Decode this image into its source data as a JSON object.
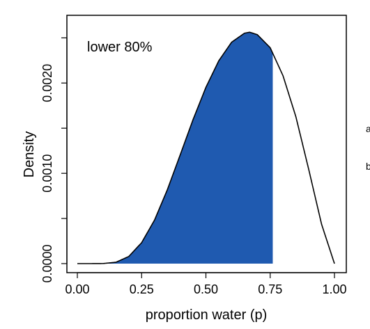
{
  "chart_data": {
    "type": "area",
    "title": "",
    "xlabel": "proportion water (p)",
    "ylabel": "Density",
    "xlim": [
      0,
      1
    ],
    "ylim": [
      0,
      0.00275
    ],
    "x_ticks": [
      0.0,
      0.25,
      0.5,
      0.75,
      1.0
    ],
    "x_tick_labels": [
      "0.00",
      "0.25",
      "0.50",
      "0.75",
      "1.00"
    ],
    "y_ticks": [
      0.0,
      0.0005,
      0.001,
      0.0015,
      0.002,
      0.0025
    ],
    "y_tick_labels": [
      "0.0000",
      "",
      "0.0010",
      "",
      "0.0020",
      ""
    ],
    "annotation": "lower 80%",
    "shaded_interval": [
      0.0,
      0.76
    ],
    "shade_color": "#1f5ab0",
    "line_color": "#000000",
    "series": [
      {
        "x": [
          0.0,
          0.05,
          0.1,
          0.15,
          0.2,
          0.25,
          0.3,
          0.35,
          0.4,
          0.45,
          0.5,
          0.55,
          0.6,
          0.65,
          0.67,
          0.7,
          0.75,
          0.8,
          0.85,
          0.9,
          0.95,
          1.0
        ],
        "values": [
          0.0,
          0.0,
          1e-06,
          1.5e-05,
          7.9e-05,
          0.000232,
          0.000481,
          0.000818,
          0.001204,
          0.001595,
          0.001952,
          0.002246,
          0.002452,
          0.002552,
          0.002563,
          0.002536,
          0.002391,
          0.00208,
          0.001626,
          0.001042,
          0.000435,
          0.0
        ]
      }
    ],
    "grid": false,
    "legend": "none"
  },
  "edge_glyphs": [
    "a",
    "b"
  ]
}
